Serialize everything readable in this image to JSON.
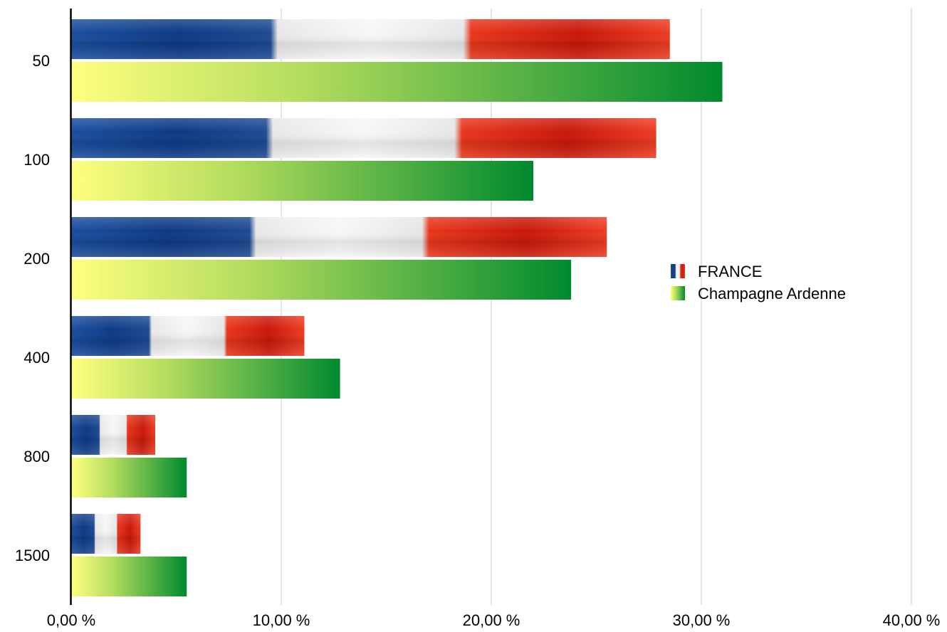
{
  "chart_data": {
    "type": "bar",
    "orientation": "horizontal",
    "title": "",
    "xlabel": "",
    "ylabel": "",
    "categories": [
      "50",
      "100",
      "200",
      "400",
      "800",
      "1500"
    ],
    "series": [
      {
        "name": "FRANCE",
        "values": [
          28.5,
          27.85,
          25.5,
          11.1,
          4.0,
          3.3
        ],
        "colors": [
          "#0b3c8c",
          "#f2f2f2",
          "#e2200f"
        ]
      },
      {
        "name": "Champagne Ardenne",
        "values": [
          31.0,
          22.0,
          23.8,
          12.8,
          5.5,
          5.5
        ],
        "colors": [
          "#ffff80",
          "#009030"
        ]
      }
    ],
    "xlim": [
      0,
      40
    ],
    "x_ticks": [
      "0,00 %",
      "10,00 %",
      "20,00 %",
      "30,00 %",
      "40,00 %"
    ],
    "x_tick_values": [
      0,
      10,
      20,
      30,
      40
    ],
    "grid": true,
    "legend_position": "right"
  }
}
